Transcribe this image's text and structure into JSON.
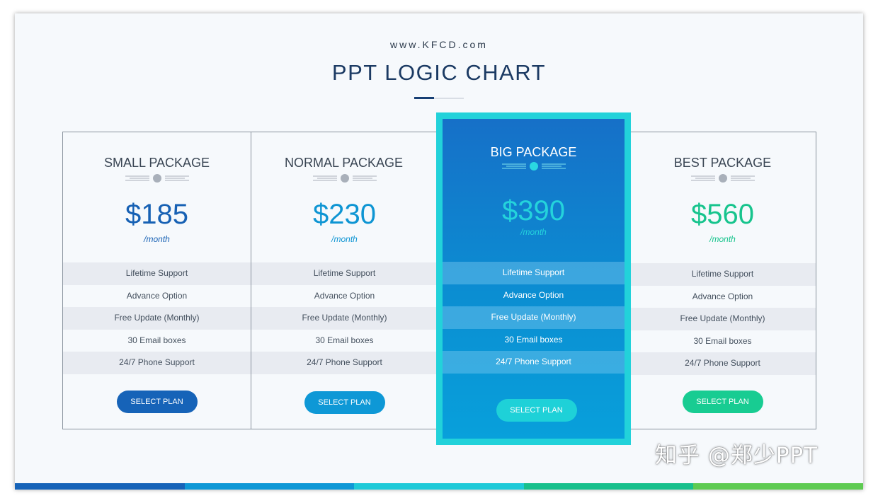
{
  "header": {
    "site": "www.KFCD.com",
    "title": "PPT LOGIC CHART"
  },
  "plans": [
    {
      "name": "SMALL PACKAGE",
      "price": "$185",
      "unit": "/month",
      "button_label": "SELECT PLAN",
      "price_color": "#1761b4",
      "button_color": "#1663b8",
      "features": [
        "Lifetime Support",
        "Advance Option",
        "Free Update (Monthly)",
        "30 Email boxes",
        "24/7 Phone Support"
      ]
    },
    {
      "name": "NORMAL PACKAGE",
      "price": "$230",
      "unit": "/month",
      "button_label": "SELECT PLAN",
      "price_color": "#0e95d3",
      "button_color": "#0e98d6",
      "features": [
        "Lifetime Support",
        "Advance Option",
        "Free Update (Monthly)",
        "30 Email boxes",
        "24/7 Phone Support"
      ]
    },
    {
      "name": "BIG PACKAGE",
      "price": "$390",
      "unit": "/month",
      "button_label": "SELECT PLAN",
      "price_color": "#24d3dc",
      "button_color": "#1ed1d8",
      "features": [
        "Lifetime Support",
        "Advance Option",
        "Free Update (Monthly)",
        "30 Email boxes",
        "24/7 Phone Support"
      ]
    },
    {
      "name": "BEST PACKAGE",
      "price": "$560",
      "unit": "/month",
      "button_label": "SELECT PLAN",
      "price_color": "#17c48d",
      "button_color": "#18cc92",
      "features": [
        "Lifetime Support",
        "Advance Option",
        "Free Update (Monthly)",
        "30 Email boxes",
        "24/7 Phone Support"
      ]
    }
  ],
  "bottom_bar_colors": [
    "#1663b8",
    "#0e98d6",
    "#1ecad8",
    "#18c08c",
    "#5ecb52"
  ],
  "watermark": "知乎 @郑少PPT"
}
